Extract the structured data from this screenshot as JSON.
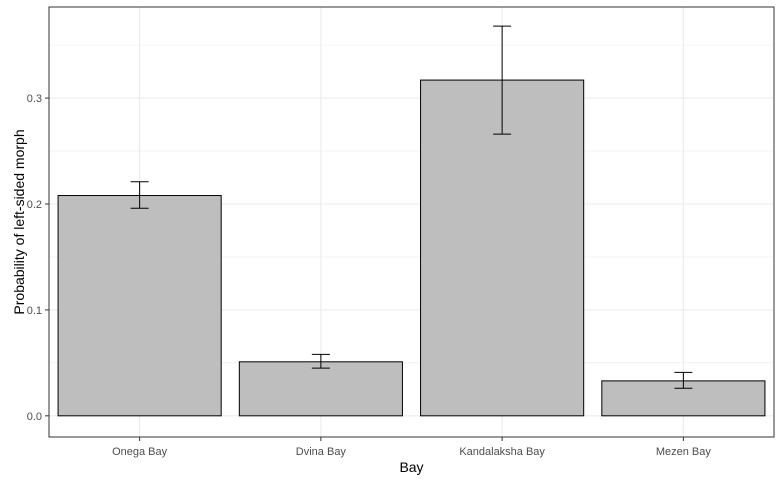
{
  "chart_data": {
    "type": "bar",
    "title": "",
    "xlabel": "Bay",
    "ylabel": "Probability of left-sided morph",
    "categories": [
      "Onega Bay",
      "Dvina Bay",
      "Kandalaksha Bay",
      "Mezen Bay"
    ],
    "values": [
      0.208,
      0.051,
      0.317,
      0.033
    ],
    "error_lower": [
      0.196,
      0.045,
      0.266,
      0.026
    ],
    "error_upper": [
      0.221,
      0.058,
      0.368,
      0.041
    ],
    "ylim": [
      -0.02,
      0.386
    ],
    "y_ticks": [
      0.0,
      0.1,
      0.2,
      0.3
    ],
    "y_tick_labels": [
      "0.0",
      "0.1",
      "0.2",
      "0.3"
    ],
    "grid": true,
    "colors": {
      "bar_fill": "#bebebe",
      "bar_stroke": "#000000",
      "grid": "#ebebeb",
      "panel_border": "#333333"
    }
  }
}
